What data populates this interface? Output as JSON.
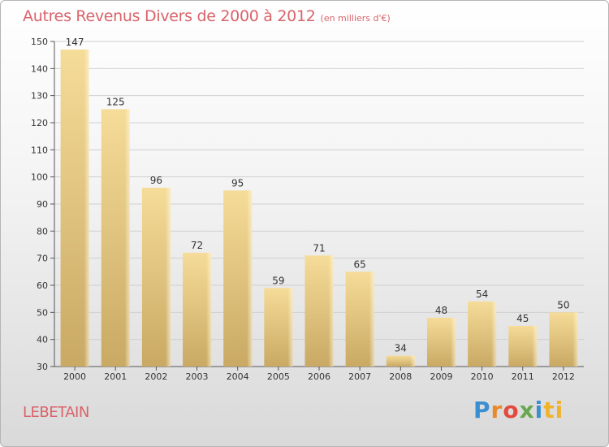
{
  "chart_data": {
    "type": "bar",
    "title": "Autres Revenus Divers de 2000 à 2012",
    "subtitle": "(en milliers d'€)",
    "categories": [
      "2000",
      "2001",
      "2002",
      "2003",
      "2004",
      "2005",
      "2006",
      "2007",
      "2008",
      "2009",
      "2010",
      "2011",
      "2012"
    ],
    "values": [
      147,
      125,
      96,
      72,
      95,
      59,
      71,
      65,
      34,
      48,
      54,
      45,
      50
    ],
    "ylim": [
      30,
      150
    ],
    "yticks": [
      30,
      40,
      50,
      60,
      70,
      80,
      90,
      100,
      110,
      120,
      130,
      140,
      150
    ],
    "grid": true,
    "bar_color": "#e6c985"
  },
  "footer": {
    "commune": "LEBETAIN",
    "logo_letters": [
      "P",
      "r",
      "o",
      "x",
      "i",
      "ti"
    ]
  }
}
